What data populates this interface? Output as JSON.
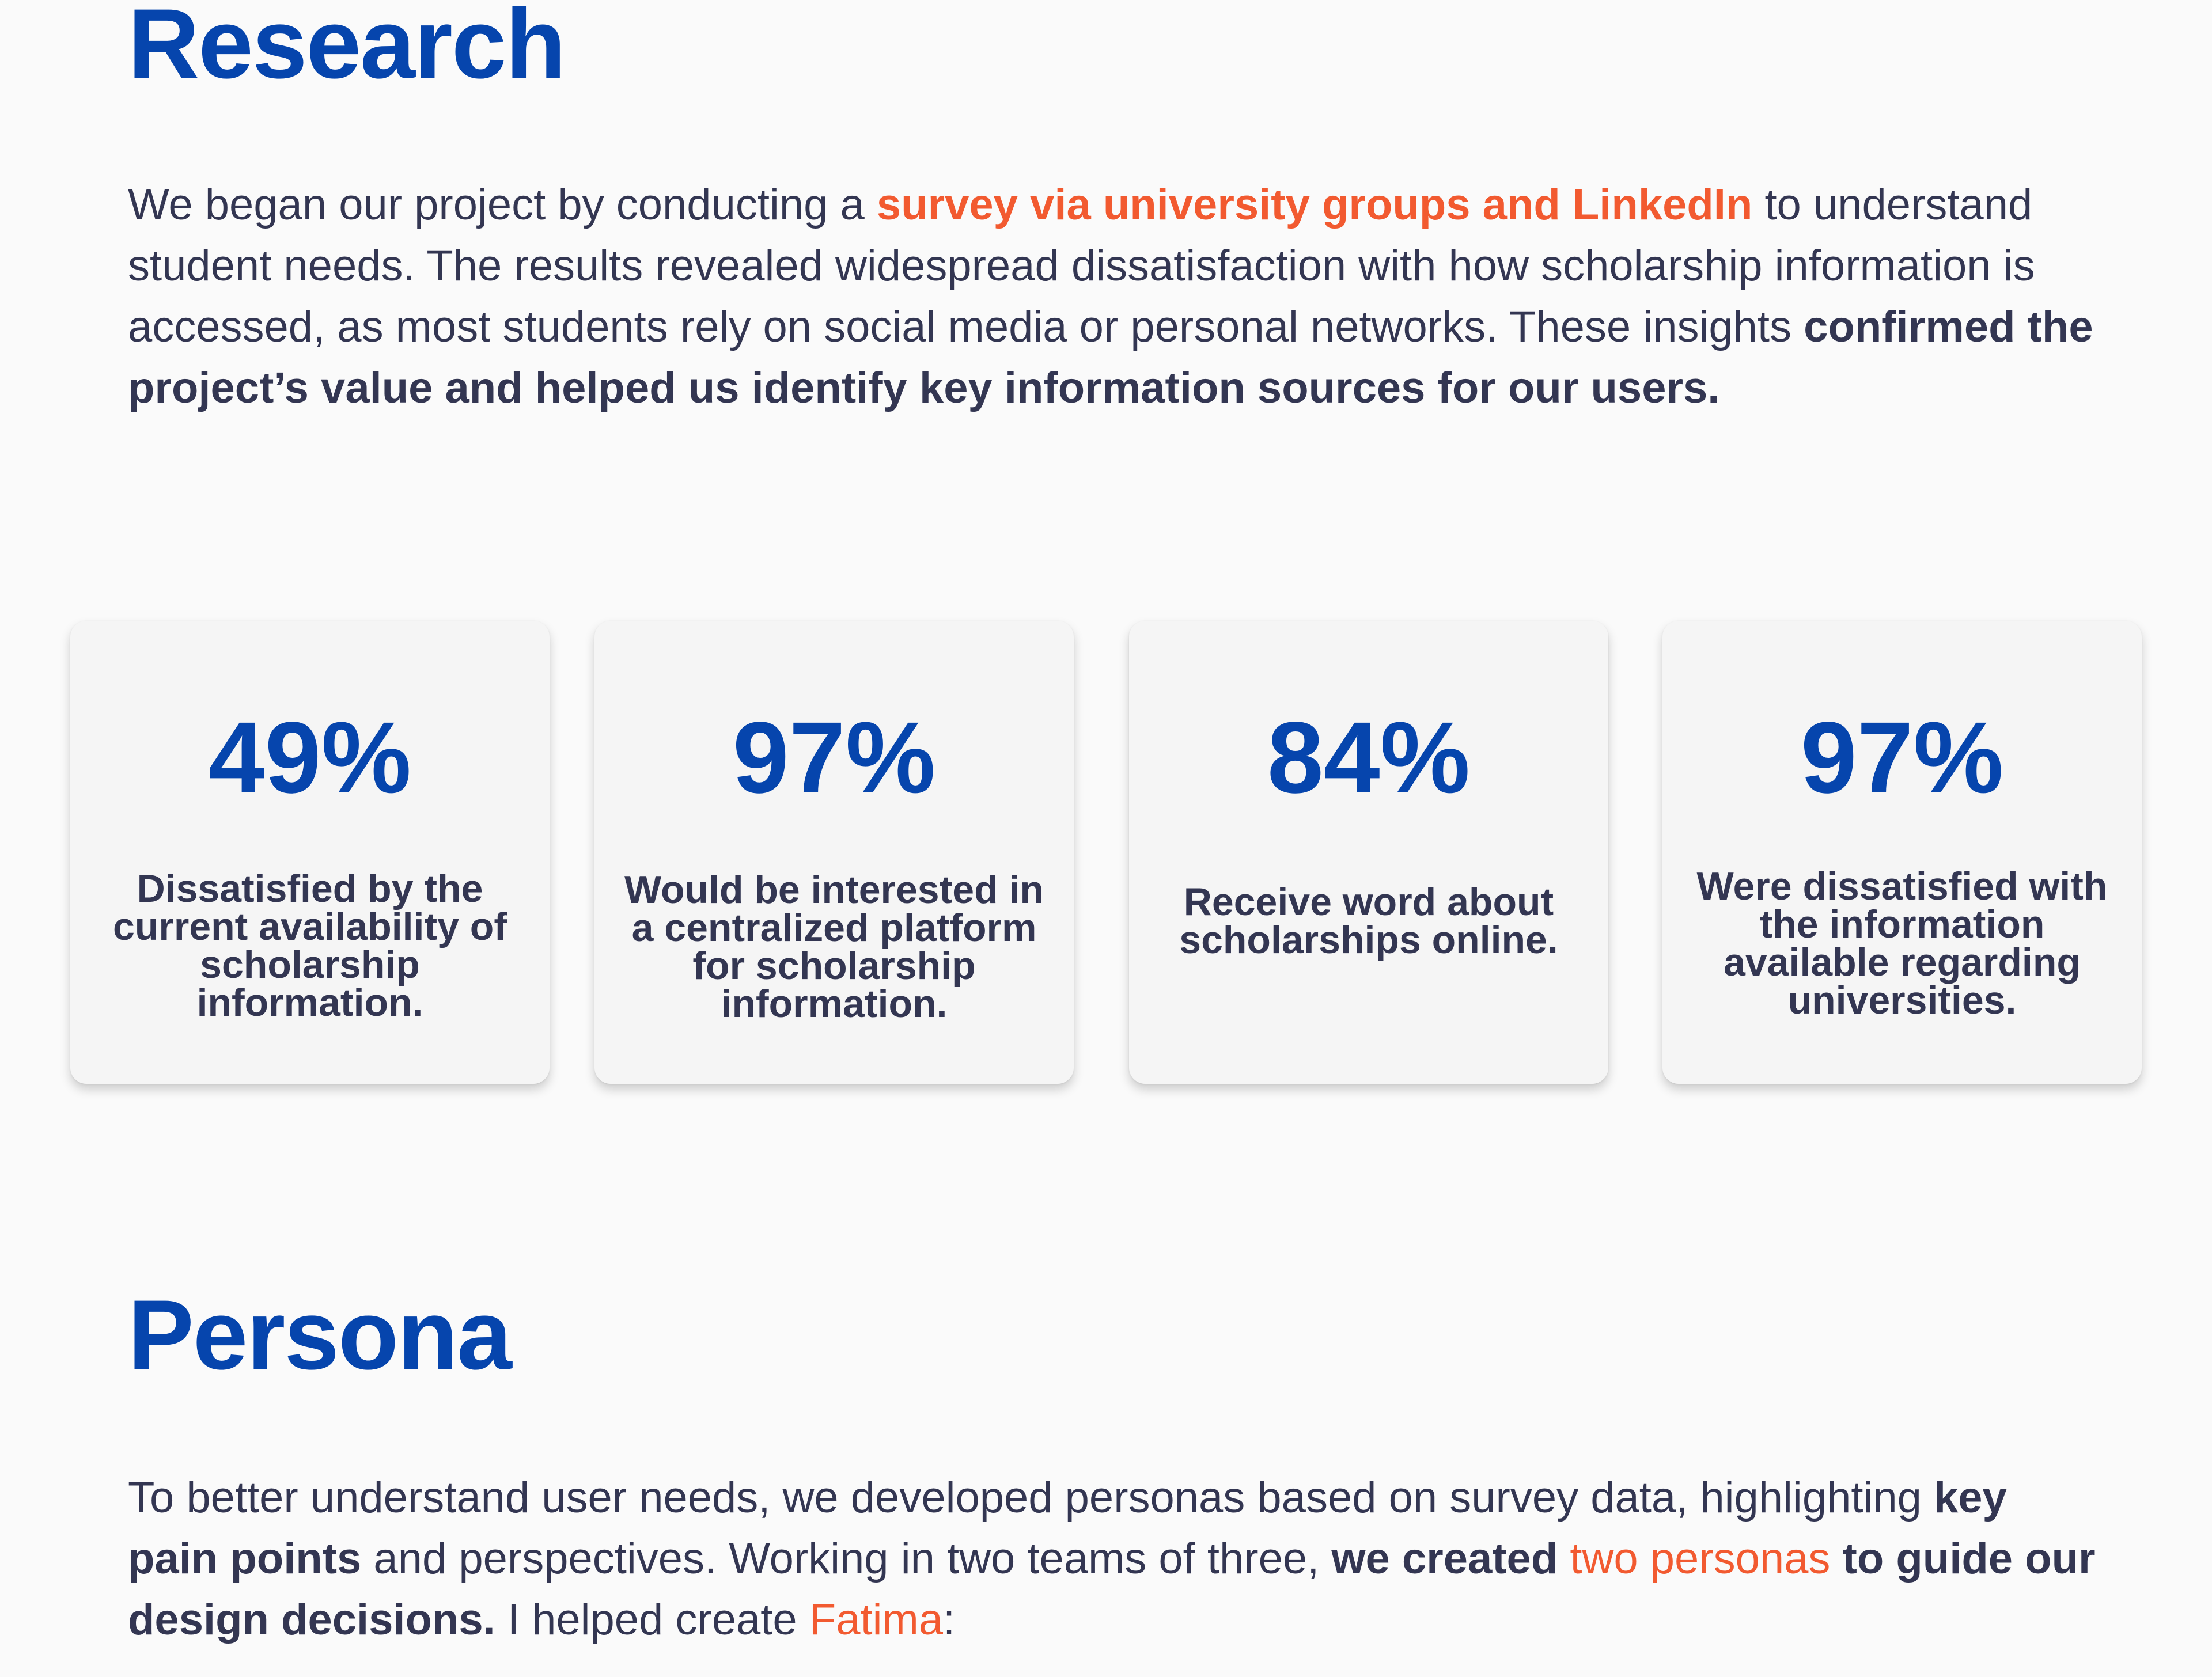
{
  "research": {
    "title": "Research",
    "para": {
      "t1": "We began our project by conducting a ",
      "t2": "survey via university groups and LinkedIn",
      "t3": " to understand student needs. The results revealed widespread dissatisfaction with how scholarship information is accessed, as most students rely on social media or personal networks. These insights ",
      "t4": "confirmed the project’s value and helped us identify key information sources for our users."
    }
  },
  "stats": [
    {
      "value": "49%",
      "label": "Dissatisfied by the current availability of scholarship information."
    },
    {
      "value": "97%",
      "label": "Would be interested in a centralized platform for scholarship information."
    },
    {
      "value": "84%",
      "label": "Receive word about scholarships online."
    },
    {
      "value": "97%",
      "label": "Were dissatisfied with the information available regarding universities."
    }
  ],
  "persona": {
    "title": "Persona",
    "para": {
      "t1": "To better understand user needs, we developed personas based on survey data, highlighting ",
      "t2": "key pain points",
      "t3": " and perspectives. Working in two teams of three, ",
      "t4": "we created ",
      "t5": "two personas",
      "t6": " to guide our design decisions.",
      "t7": " I helped create ",
      "t8": "Fatima",
      "t9": ":"
    }
  },
  "colors": {
    "heading_blue": "#0645ad",
    "accent_orange": "#f25a30",
    "body_text": "#333652",
    "card_bg": "#f5f5f5",
    "page_bg": "#fafafa"
  }
}
